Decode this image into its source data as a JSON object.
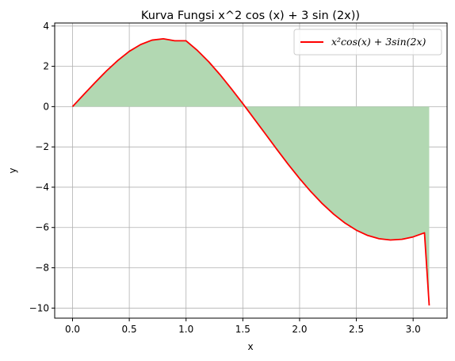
{
  "chart_data": {
    "type": "line",
    "title": "Kurva Fungsi x^2 cos (x) + 3 sin (2x))",
    "xlabel": "x",
    "ylabel": "y",
    "xlim": [
      -0.157,
      3.299
    ],
    "ylim": [
      -10.5,
      4.15
    ],
    "xticks": [
      0.0,
      0.5,
      1.0,
      1.5,
      2.0,
      2.5,
      3.0
    ],
    "xtick_labels": [
      "0.0",
      "0.5",
      "1.0",
      "1.5",
      "2.0",
      "2.5",
      "3.0"
    ],
    "yticks": [
      4,
      2,
      0,
      -2,
      -4,
      -6,
      -8,
      -10
    ],
    "ytick_labels": [
      "4",
      "2",
      "0",
      "−2",
      "−4",
      "−6",
      "−8",
      "−10"
    ],
    "grid": true,
    "legend_position": "top-right",
    "series": [
      {
        "name": "x²cos(x) + 3sin(2x)",
        "color": "#ff0000",
        "x": [
          0.0,
          0.1,
          0.2,
          0.3,
          0.4,
          0.5,
          0.6,
          0.7,
          0.8,
          0.9,
          1.0,
          1.1,
          1.2,
          1.3,
          1.4,
          1.5,
          1.6,
          1.7,
          1.8,
          1.9,
          2.0,
          2.1,
          2.2,
          2.3,
          2.4,
          2.5,
          2.6,
          2.7,
          2.8,
          2.9,
          3.0,
          3.1,
          3.1416
        ],
        "y": [
          0.0,
          0.606,
          1.203,
          1.778,
          2.296,
          2.744,
          3.082,
          3.3,
          3.367,
          3.27,
          3.268,
          2.787,
          2.226,
          1.581,
          0.88,
          0.151,
          -0.608,
          -1.363,
          -2.124,
          -2.866,
          -3.57,
          -4.225,
          -4.818,
          -5.339,
          -5.781,
          -6.135,
          -6.396,
          -6.557,
          -6.621,
          -6.588,
          -6.466,
          -6.264,
          -9.87
        ],
        "fill_color": "#b2d8b2",
        "fill_to": 0
      }
    ]
  }
}
